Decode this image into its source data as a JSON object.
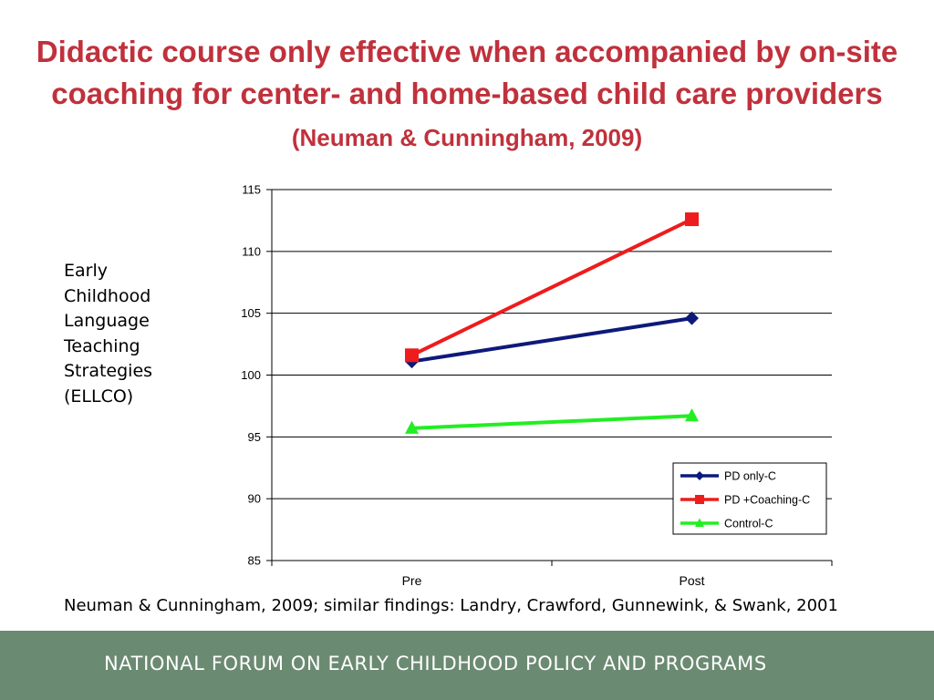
{
  "slide": {
    "title_main": "Didactic course only effective when accompanied by on-site coaching for center- and home-based child care providers",
    "title_cite": "(Neuman & Cunningham, 2009)",
    "ylabel_lines": [
      "Early",
      "Childhood",
      "Language",
      "Teaching",
      "Strategies",
      "(ELLCO)"
    ],
    "source": "Neuman & Cunningham, 2009; similar findings: Landry, Crawford, Gunnewink, & Swank, 2001",
    "footer": "NATIONAL FORUM ON EARLY CHILDHOOD POLICY AND PROGRAMS"
  },
  "chart_data": {
    "type": "line",
    "categories": [
      "Pre",
      "Post"
    ],
    "series": [
      {
        "name": "PD only-C",
        "values": [
          101.1,
          104.6
        ],
        "color": "#0d1a7a",
        "marker": "diamond"
      },
      {
        "name": "PD +Coaching-C",
        "values": [
          101.6,
          112.6
        ],
        "color": "#ee1c1c",
        "marker": "square"
      },
      {
        "name": "Control-C",
        "values": [
          95.7,
          96.7
        ],
        "color": "#22ee22",
        "marker": "triangle"
      }
    ],
    "ylim": [
      85,
      115
    ],
    "yticks": [
      85,
      90,
      95,
      100,
      105,
      110,
      115
    ],
    "grid": true,
    "legend_position": "bottom-right"
  }
}
